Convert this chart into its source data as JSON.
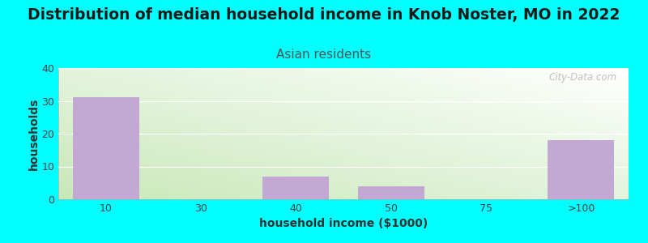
{
  "title": "Distribution of median household income in Knob Noster, MO in 2022",
  "subtitle": "Asian residents",
  "xlabel": "household income ($1000)",
  "ylabel": "households",
  "background_color": "#00FFFF",
  "bar_color": "#c4a8d4",
  "categories": [
    "10",
    "30",
    "40",
    "50",
    "75",
    ">100"
  ],
  "values": [
    31,
    0,
    7,
    4,
    0,
    18
  ],
  "ylim": [
    0,
    40
  ],
  "yticks": [
    0,
    10,
    20,
    30,
    40
  ],
  "watermark": "City-Data.com",
  "title_fontsize": 13.5,
  "subtitle_fontsize": 11,
  "subtitle_color": "#555555",
  "title_color": "#1a1a1a",
  "axis_label_fontsize": 10,
  "tick_fontsize": 9,
  "grad_bottom_color": "#c8e8b8",
  "grad_top_color": "#f8fff8",
  "grad_right_color": "#ffffff"
}
